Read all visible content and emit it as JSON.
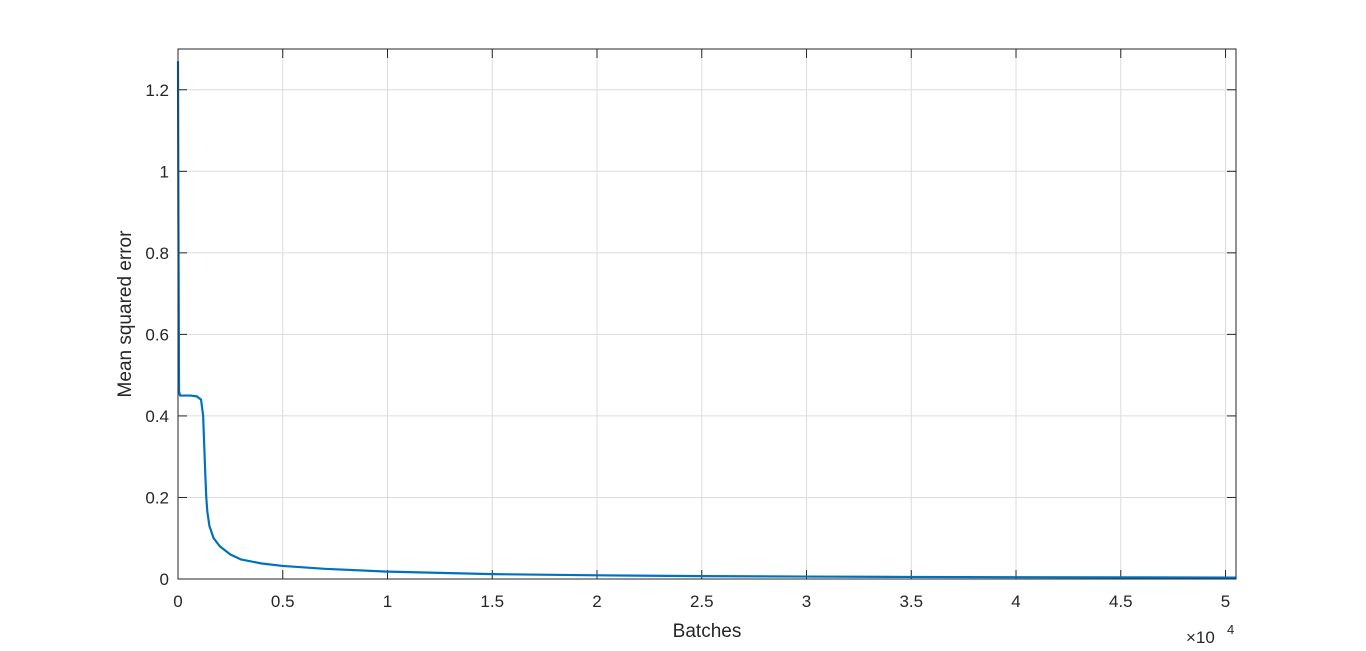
{
  "chart_data": {
    "type": "line",
    "xlabel": "Batches",
    "ylabel": "Mean squared error",
    "x_exponent_label": "×10",
    "x_exponent_power": "4",
    "xlim": [
      0,
      5.05
    ],
    "ylim": [
      0,
      1.3
    ],
    "grid": true,
    "x_ticks": [
      0,
      0.5,
      1,
      1.5,
      2,
      2.5,
      3,
      3.5,
      4,
      4.5,
      5
    ],
    "x_tick_labels": [
      "0",
      "0.5",
      "1",
      "1.5",
      "2",
      "2.5",
      "3",
      "3.5",
      "4",
      "4.5",
      "5"
    ],
    "y_ticks": [
      0,
      0.2,
      0.4,
      0.6,
      0.8,
      1,
      1.2
    ],
    "y_tick_labels": [
      "0",
      "0.2",
      "0.4",
      "0.6",
      "0.8",
      "1",
      "1.2"
    ],
    "series": [
      {
        "color": "#0072bd",
        "x": [
          0,
          0.002,
          0.005,
          0.01,
          0.03,
          0.06,
          0.09,
          0.11,
          0.12,
          0.125,
          0.13,
          0.135,
          0.14,
          0.15,
          0.17,
          0.2,
          0.25,
          0.3,
          0.4,
          0.5,
          0.7,
          1.0,
          1.5,
          2.0,
          2.5,
          3.0,
          3.5,
          4.0,
          4.5,
          5.05
        ],
        "y": [
          1.27,
          0.9,
          0.46,
          0.45,
          0.45,
          0.45,
          0.448,
          0.44,
          0.4,
          0.33,
          0.26,
          0.2,
          0.165,
          0.13,
          0.1,
          0.08,
          0.06,
          0.048,
          0.038,
          0.032,
          0.025,
          0.018,
          0.012,
          0.009,
          0.007,
          0.006,
          0.005,
          0.0045,
          0.004,
          0.0035
        ]
      }
    ]
  }
}
